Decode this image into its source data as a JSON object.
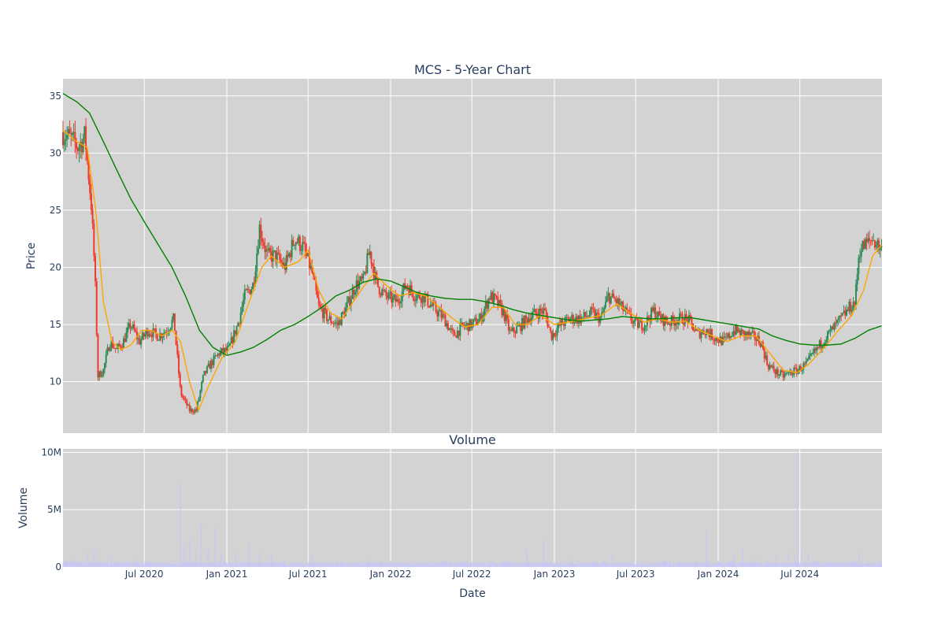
{
  "chart_data": [
    {
      "type": "candlestick",
      "title": "MCS - 5-Year Chart",
      "xlabel": "",
      "ylabel": "Price",
      "xlim": [
        "2020-01-02",
        "2024-12-31"
      ],
      "ylim": [
        5.5,
        36.5
      ],
      "y_ticks": [
        10,
        15,
        20,
        25,
        30,
        35
      ],
      "x_ticks": [
        {
          "date": "2020-07-01",
          "label": "Jul 2020"
        },
        {
          "date": "2021-01-01",
          "label": "Jan 2021"
        },
        {
          "date": "2021-07-01",
          "label": "Jul 2021"
        },
        {
          "date": "2022-01-01",
          "label": "Jan 2022"
        },
        {
          "date": "2022-07-01",
          "label": "Jul 2022"
        },
        {
          "date": "2023-01-01",
          "label": "Jan 2023"
        },
        {
          "date": "2023-07-01",
          "label": "Jul 2023"
        },
        {
          "date": "2024-01-01",
          "label": "Jan 2024"
        },
        {
          "date": "2024-07-01",
          "label": "Jul 2024"
        }
      ],
      "grid": true,
      "background": "#d3d3d3",
      "up_color": "#2e8b57",
      "down_color": "#ef3b2c",
      "close_approx": [
        [
          "2020-01-02",
          31.8
        ],
        [
          "2020-01-20",
          31.2
        ],
        [
          "2020-02-05",
          30.5
        ],
        [
          "2020-02-20",
          31.5
        ],
        [
          "2020-03-05",
          25.5
        ],
        [
          "2020-03-13",
          19.5
        ],
        [
          "2020-03-20",
          10.5
        ],
        [
          "2020-04-01",
          11.0
        ],
        [
          "2020-04-15",
          13.5
        ],
        [
          "2020-05-01",
          12.8
        ],
        [
          "2020-05-15",
          13.5
        ],
        [
          "2020-06-01",
          15.0
        ],
        [
          "2020-06-20",
          13.5
        ],
        [
          "2020-07-10",
          14.5
        ],
        [
          "2020-08-01",
          14.0
        ],
        [
          "2020-08-20",
          14.5
        ],
        [
          "2020-09-05",
          15.5
        ],
        [
          "2020-09-20",
          9.0
        ],
        [
          "2020-10-10",
          7.5
        ],
        [
          "2020-10-25",
          7.5
        ],
        [
          "2020-11-10",
          10.5
        ],
        [
          "2020-11-25",
          11.5
        ],
        [
          "2020-12-15",
          12.5
        ],
        [
          "2021-01-05",
          12.8
        ],
        [
          "2021-01-25",
          15.0
        ],
        [
          "2021-02-10",
          17.5
        ],
        [
          "2021-03-01",
          18.5
        ],
        [
          "2021-03-15",
          23.5
        ],
        [
          "2021-04-01",
          21.0
        ],
        [
          "2021-04-20",
          21.0
        ],
        [
          "2021-05-10",
          20.0
        ],
        [
          "2021-06-01",
          22.5
        ],
        [
          "2021-06-20",
          21.8
        ],
        [
          "2021-07-10",
          19.5
        ],
        [
          "2021-07-25",
          16.5
        ],
        [
          "2021-08-15",
          15.5
        ],
        [
          "2021-09-05",
          15.0
        ],
        [
          "2021-09-25",
          16.5
        ],
        [
          "2021-10-15",
          18.5
        ],
        [
          "2021-11-01",
          18.8
        ],
        [
          "2021-11-15",
          21.5
        ],
        [
          "2021-12-01",
          18.5
        ],
        [
          "2021-12-20",
          17.5
        ],
        [
          "2022-01-15",
          17.0
        ],
        [
          "2022-02-05",
          18.5
        ],
        [
          "2022-02-25",
          17.5
        ],
        [
          "2022-03-15",
          17.5
        ],
        [
          "2022-04-05",
          16.5
        ],
        [
          "2022-05-01",
          15.5
        ],
        [
          "2022-05-20",
          14.0
        ],
        [
          "2022-06-10",
          14.8
        ],
        [
          "2022-07-01",
          15.0
        ],
        [
          "2022-07-20",
          15.5
        ],
        [
          "2022-08-10",
          17.5
        ],
        [
          "2022-08-25",
          17.0
        ],
        [
          "2022-09-10",
          16.0
        ],
        [
          "2022-09-25",
          14.2
        ],
        [
          "2022-10-15",
          14.8
        ],
        [
          "2022-11-01",
          15.5
        ],
        [
          "2022-11-20",
          16.0
        ],
        [
          "2022-12-10",
          16.2
        ],
        [
          "2022-12-25",
          14.0
        ],
        [
          "2023-01-15",
          15.0
        ],
        [
          "2023-02-05",
          15.5
        ],
        [
          "2023-03-01",
          15.5
        ],
        [
          "2023-03-25",
          16.0
        ],
        [
          "2023-04-15",
          15.5
        ],
        [
          "2023-05-01",
          17.5
        ],
        [
          "2023-05-20",
          17.0
        ],
        [
          "2023-06-10",
          16.0
        ],
        [
          "2023-07-01",
          15.0
        ],
        [
          "2023-07-20",
          15.0
        ],
        [
          "2023-08-10",
          16.2
        ],
        [
          "2023-08-25",
          15.5
        ],
        [
          "2023-09-15",
          15.2
        ],
        [
          "2023-10-05",
          15.5
        ],
        [
          "2023-10-25",
          15.5
        ],
        [
          "2023-11-15",
          14.2
        ],
        [
          "2023-12-05",
          14.5
        ],
        [
          "2023-12-25",
          13.8
        ],
        [
          "2024-01-15",
          13.5
        ],
        [
          "2024-02-05",
          14.5
        ],
        [
          "2024-02-25",
          14.2
        ],
        [
          "2024-03-15",
          14.0
        ],
        [
          "2024-04-05",
          13.5
        ],
        [
          "2024-04-20",
          11.5
        ],
        [
          "2024-05-10",
          10.8
        ],
        [
          "2024-05-25",
          10.5
        ],
        [
          "2024-06-10",
          10.8
        ],
        [
          "2024-06-25",
          11.0
        ],
        [
          "2024-07-15",
          11.5
        ],
        [
          "2024-08-01",
          12.5
        ],
        [
          "2024-08-20",
          13.5
        ],
        [
          "2024-09-10",
          14.5
        ],
        [
          "2024-10-01",
          15.5
        ],
        [
          "2024-10-20",
          16.5
        ],
        [
          "2024-11-01",
          17.0
        ],
        [
          "2024-11-10",
          21.5
        ],
        [
          "2024-11-25",
          22.0
        ],
        [
          "2024-12-10",
          22.5
        ],
        [
          "2024-12-31",
          21.5
        ]
      ],
      "ma_short_approx": [
        [
          "2020-01-02",
          32.0
        ],
        [
          "2020-02-01",
          31.0
        ],
        [
          "2020-02-25",
          30.5
        ],
        [
          "2020-03-15",
          25.0
        ],
        [
          "2020-04-01",
          17.0
        ],
        [
          "2020-04-20",
          13.5
        ],
        [
          "2020-05-10",
          12.8
        ],
        [
          "2020-06-01",
          13.2
        ],
        [
          "2020-06-25",
          14.5
        ],
        [
          "2020-07-15",
          14.5
        ],
        [
          "2020-08-10",
          14.0
        ],
        [
          "2020-09-01",
          14.5
        ],
        [
          "2020-09-20",
          13.5
        ],
        [
          "2020-10-10",
          10.0
        ],
        [
          "2020-10-30",
          7.5
        ],
        [
          "2020-11-20",
          9.5
        ],
        [
          "2020-12-20",
          12.0
        ],
        [
          "2021-01-20",
          13.5
        ],
        [
          "2021-02-20",
          17.0
        ],
        [
          "2021-03-20",
          20.0
        ],
        [
          "2021-04-10",
          21.0
        ],
        [
          "2021-05-10",
          20.0
        ],
        [
          "2021-06-10",
          20.5
        ],
        [
          "2021-07-01",
          21.5
        ],
        [
          "2021-07-25",
          18.0
        ],
        [
          "2021-08-20",
          16.0
        ],
        [
          "2021-09-15",
          15.5
        ],
        [
          "2021-10-10",
          17.0
        ],
        [
          "2021-11-05",
          18.5
        ],
        [
          "2021-11-25",
          19.5
        ],
        [
          "2021-12-20",
          18.5
        ],
        [
          "2022-01-20",
          17.5
        ],
        [
          "2022-02-20",
          17.8
        ],
        [
          "2022-03-20",
          17.5
        ],
        [
          "2022-04-20",
          16.5
        ],
        [
          "2022-05-20",
          15.5
        ],
        [
          "2022-06-15",
          14.8
        ],
        [
          "2022-07-15",
          15.0
        ],
        [
          "2022-08-15",
          16.5
        ],
        [
          "2022-09-10",
          16.5
        ],
        [
          "2022-10-05",
          15.0
        ],
        [
          "2022-11-01",
          15.0
        ],
        [
          "2022-12-01",
          15.8
        ],
        [
          "2023-01-01",
          15.0
        ],
        [
          "2023-02-01",
          15.2
        ],
        [
          "2023-03-10",
          15.5
        ],
        [
          "2023-04-15",
          15.8
        ],
        [
          "2023-05-20",
          16.8
        ],
        [
          "2023-06-20",
          16.0
        ],
        [
          "2023-07-20",
          15.2
        ],
        [
          "2023-08-20",
          15.5
        ],
        [
          "2023-09-20",
          15.2
        ],
        [
          "2023-10-20",
          15.3
        ],
        [
          "2023-11-20",
          14.5
        ],
        [
          "2023-12-20",
          14.0
        ],
        [
          "2024-01-20",
          13.5
        ],
        [
          "2024-02-20",
          14.0
        ],
        [
          "2024-03-25",
          14.0
        ],
        [
          "2024-04-25",
          12.5
        ],
        [
          "2024-05-25",
          11.0
        ],
        [
          "2024-06-25",
          10.8
        ],
        [
          "2024-07-20",
          11.5
        ],
        [
          "2024-08-25",
          13.0
        ],
        [
          "2024-09-25",
          14.5
        ],
        [
          "2024-10-25",
          15.8
        ],
        [
          "2024-11-20",
          18.0
        ],
        [
          "2024-12-10",
          21.0
        ],
        [
          "2024-12-31",
          22.0
        ]
      ],
      "ma_long_approx": [
        [
          "2020-01-02",
          35.2
        ],
        [
          "2020-02-01",
          34.5
        ],
        [
          "2020-03-01",
          33.5
        ],
        [
          "2020-04-01",
          31.0
        ],
        [
          "2020-05-01",
          28.5
        ],
        [
          "2020-06-01",
          26.0
        ],
        [
          "2020-07-01",
          24.0
        ],
        [
          "2020-08-01",
          22.0
        ],
        [
          "2020-09-01",
          20.0
        ],
        [
          "2020-10-01",
          17.5
        ],
        [
          "2020-11-01",
          14.5
        ],
        [
          "2020-12-01",
          13.0
        ],
        [
          "2021-01-01",
          12.3
        ],
        [
          "2021-02-01",
          12.6
        ],
        [
          "2021-03-01",
          13.0
        ],
        [
          "2021-04-01",
          13.7
        ],
        [
          "2021-05-01",
          14.5
        ],
        [
          "2021-06-01",
          15.0
        ],
        [
          "2021-07-01",
          15.7
        ],
        [
          "2021-08-01",
          16.5
        ],
        [
          "2021-09-01",
          17.5
        ],
        [
          "2021-10-01",
          18.0
        ],
        [
          "2021-11-01",
          18.7
        ],
        [
          "2021-12-01",
          19.0
        ],
        [
          "2022-01-01",
          18.8
        ],
        [
          "2022-02-01",
          18.3
        ],
        [
          "2022-03-01",
          17.8
        ],
        [
          "2022-04-01",
          17.5
        ],
        [
          "2022-05-01",
          17.3
        ],
        [
          "2022-06-01",
          17.2
        ],
        [
          "2022-07-01",
          17.2
        ],
        [
          "2022-08-01",
          17.0
        ],
        [
          "2022-09-01",
          16.7
        ],
        [
          "2022-10-01",
          16.3
        ],
        [
          "2022-11-01",
          16.0
        ],
        [
          "2022-12-01",
          15.8
        ],
        [
          "2023-01-01",
          15.6
        ],
        [
          "2023-02-01",
          15.4
        ],
        [
          "2023-03-01",
          15.3
        ],
        [
          "2023-04-01",
          15.4
        ],
        [
          "2023-05-01",
          15.5
        ],
        [
          "2023-06-01",
          15.7
        ],
        [
          "2023-07-01",
          15.6
        ],
        [
          "2023-08-01",
          15.5
        ],
        [
          "2023-09-01",
          15.5
        ],
        [
          "2023-10-01",
          15.6
        ],
        [
          "2023-11-01",
          15.6
        ],
        [
          "2023-12-01",
          15.4
        ],
        [
          "2024-01-01",
          15.2
        ],
        [
          "2024-02-01",
          15.0
        ],
        [
          "2024-03-01",
          14.8
        ],
        [
          "2024-04-01",
          14.6
        ],
        [
          "2024-05-01",
          14.0
        ],
        [
          "2024-06-01",
          13.6
        ],
        [
          "2024-07-01",
          13.3
        ],
        [
          "2024-08-01",
          13.2
        ],
        [
          "2024-09-01",
          13.2
        ],
        [
          "2024-10-01",
          13.3
        ],
        [
          "2024-11-01",
          13.8
        ],
        [
          "2024-12-01",
          14.5
        ],
        [
          "2024-12-31",
          14.9
        ]
      ],
      "ma_short_color": "#ffa500",
      "ma_long_color": "#008000"
    },
    {
      "type": "bar",
      "title": "Volume",
      "xlabel": "Date",
      "ylabel": "Volume",
      "xlim": [
        "2020-01-02",
        "2024-12-31"
      ],
      "ylim": [
        0,
        10300000
      ],
      "y_ticks": [
        {
          "value": 0,
          "label": "0"
        },
        {
          "value": 5000000,
          "label": "5M"
        },
        {
          "value": 10000000,
          "label": "10M"
        }
      ],
      "x_ticks": [
        {
          "date": "2020-07-01",
          "label": "Jul 2020"
        },
        {
          "date": "2021-01-01",
          "label": "Jan 2021"
        },
        {
          "date": "2021-07-01",
          "label": "Jul 2021"
        },
        {
          "date": "2022-01-01",
          "label": "Jan 2022"
        },
        {
          "date": "2022-07-01",
          "label": "Jul 2022"
        },
        {
          "date": "2023-01-01",
          "label": "Jan 2023"
        },
        {
          "date": "2023-07-01",
          "label": "Jul 2023"
        },
        {
          "date": "2024-01-01",
          "label": "Jan 2024"
        },
        {
          "date": "2024-07-01",
          "label": "Jul 2024"
        }
      ],
      "bar_color": "#c7c7f5",
      "baseline_volume": 350000,
      "spikes": [
        [
          "2020-01-20",
          800000
        ],
        [
          "2020-02-25",
          1200000
        ],
        [
          "2020-03-12",
          1500000
        ],
        [
          "2020-04-20",
          900000
        ],
        [
          "2020-06-15",
          700000
        ],
        [
          "2020-09-20",
          7200000
        ],
        [
          "2020-09-28",
          2000000
        ],
        [
          "2020-10-10",
          2500000
        ],
        [
          "2020-10-25",
          1500000
        ],
        [
          "2020-11-05",
          3800000
        ],
        [
          "2020-11-20",
          1600000
        ],
        [
          "2020-12-05",
          3500000
        ],
        [
          "2020-12-20",
          1400000
        ],
        [
          "2021-01-20",
          1200000
        ],
        [
          "2021-02-20",
          2000000
        ],
        [
          "2021-03-15",
          1200000
        ],
        [
          "2021-04-10",
          1000000
        ],
        [
          "2021-07-10",
          900000
        ],
        [
          "2021-11-15",
          800000
        ],
        [
          "2022-11-01",
          1500000
        ],
        [
          "2022-12-08",
          2300000
        ],
        [
          "2023-02-10",
          800000
        ],
        [
          "2023-05-10",
          1000000
        ],
        [
          "2023-12-05",
          3100000
        ],
        [
          "2024-02-05",
          1000000
        ],
        [
          "2024-02-25",
          1600000
        ],
        [
          "2024-03-25",
          900000
        ],
        [
          "2024-05-10",
          1000000
        ],
        [
          "2024-06-05",
          1300000
        ],
        [
          "2024-06-20",
          1000000
        ],
        [
          "2024-06-25",
          10000000
        ],
        [
          "2024-07-05",
          1500000
        ],
        [
          "2024-07-20",
          1000000
        ],
        [
          "2024-11-10",
          1200000
        ]
      ]
    }
  ],
  "labels": {
    "main_title": "MCS - 5-Year Chart",
    "volume_title": "Volume",
    "price_ylabel": "Price",
    "volume_ylabel": "Volume",
    "x_label": "Date"
  }
}
